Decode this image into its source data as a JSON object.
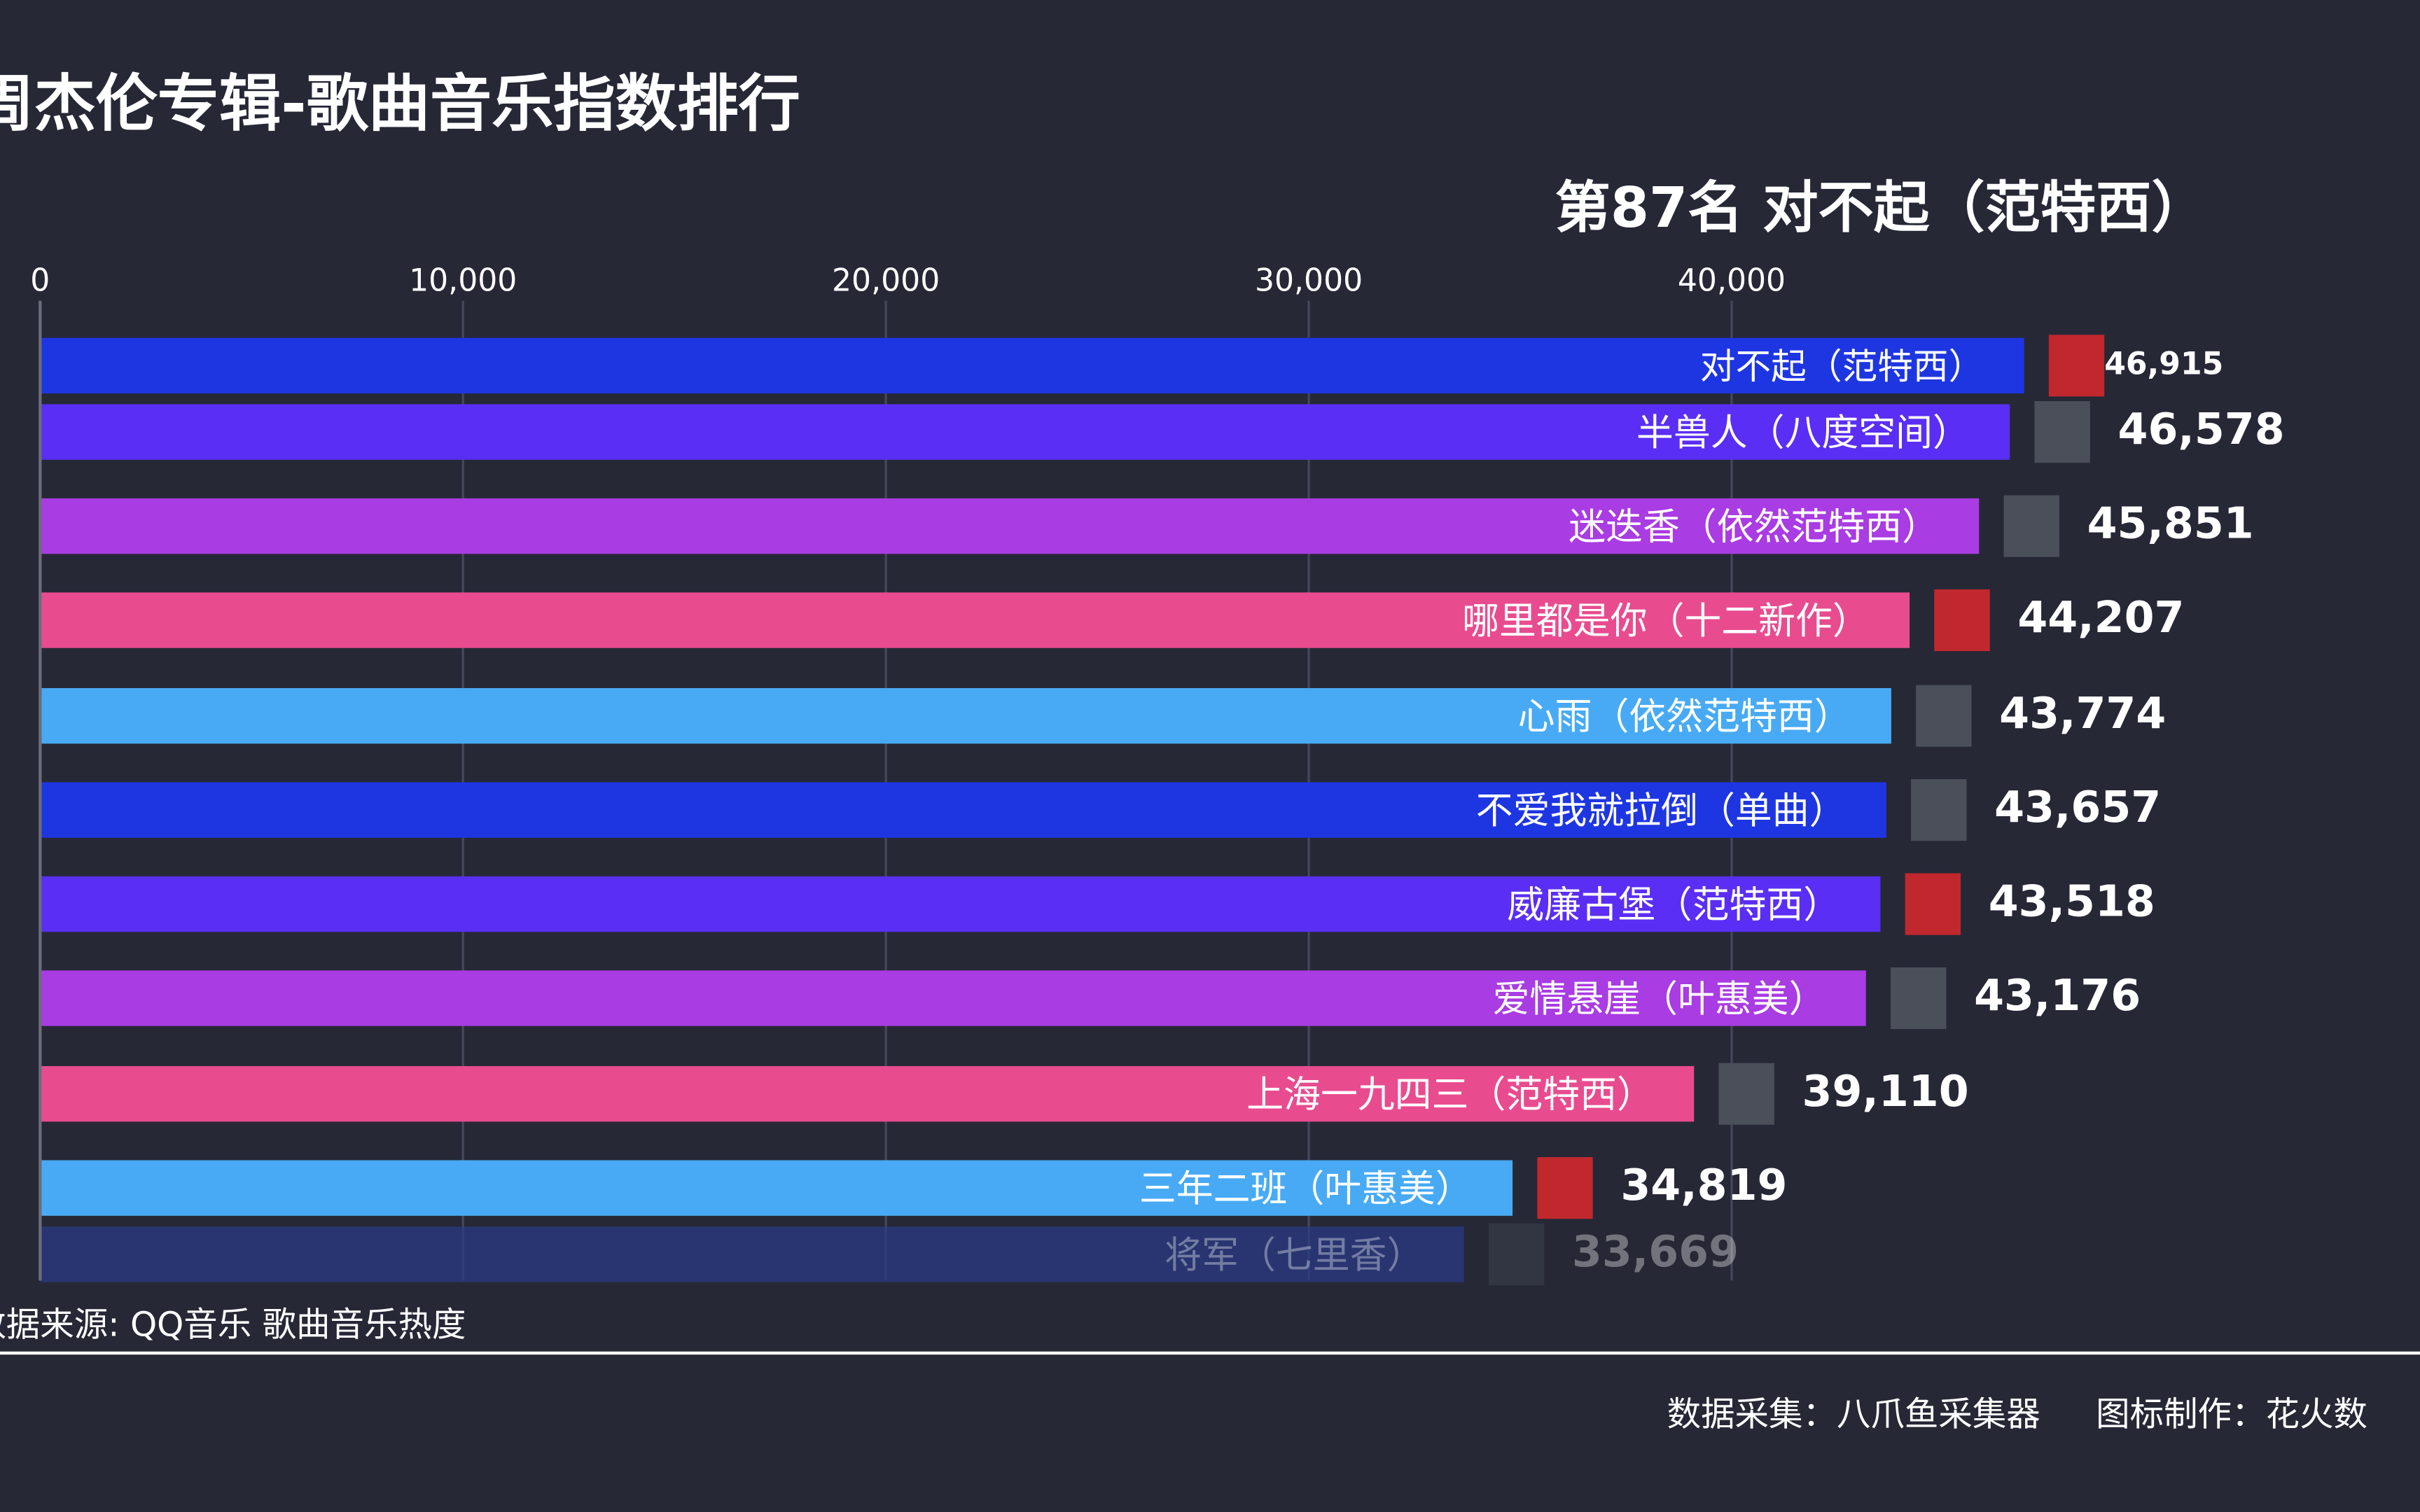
{
  "chart_data": {
    "type": "bar",
    "orientation": "horizontal",
    "title": "周杰伦专辑-歌曲音乐指数排行",
    "subtitle": "第87名 对不起（范特西）",
    "source": "数据来源: QQ音乐 歌曲音乐热度",
    "categories": [
      "对不起（范特西）",
      "半兽人（八度空间）",
      "迷迭香（依然范特西）",
      "哪里都是你（十二新作）",
      "心雨（依然范特西）",
      "不爱我就拉倒（单曲）",
      "威廉古堡（范特西）",
      "爱情悬崖（叶惠美）",
      "上海一九四三（范特西）",
      "三年二班（叶惠美）",
      "将军（七里香）"
    ],
    "values": [
      46915,
      46578,
      45851,
      44207,
      43774,
      43657,
      43518,
      43176,
      39110,
      34819,
      33669
    ],
    "value_labels": [
      "46,915",
      "46,578",
      "45,851",
      "44,207",
      "43,774",
      "43,657",
      "43,518",
      "43,176",
      "39,110",
      "34,819",
      "33,669"
    ],
    "colors": [
      "#1e36e2",
      "#5a2ef4",
      "#a93ce2",
      "#e84c8f",
      "#48aaf4",
      "#1e36e2",
      "#5a2ef4",
      "#a93ce2",
      "#e84c8f",
      "#48aaf4",
      "#2a3a8a"
    ],
    "xlim": [
      0,
      55000
    ],
    "xticks": [
      0,
      {
        "value": 10000,
        "label": "10,000"
      },
      {
        "value": 20000,
        "label": "20,000"
      },
      {
        "value": 30000,
        "label": "30,000"
      },
      {
        "value": 40000,
        "label": "40,000"
      }
    ],
    "grid": true
  },
  "footer": {
    "collector": "数据采集：八爪鱼采集器",
    "maker": "图标制作：花火数"
  }
}
